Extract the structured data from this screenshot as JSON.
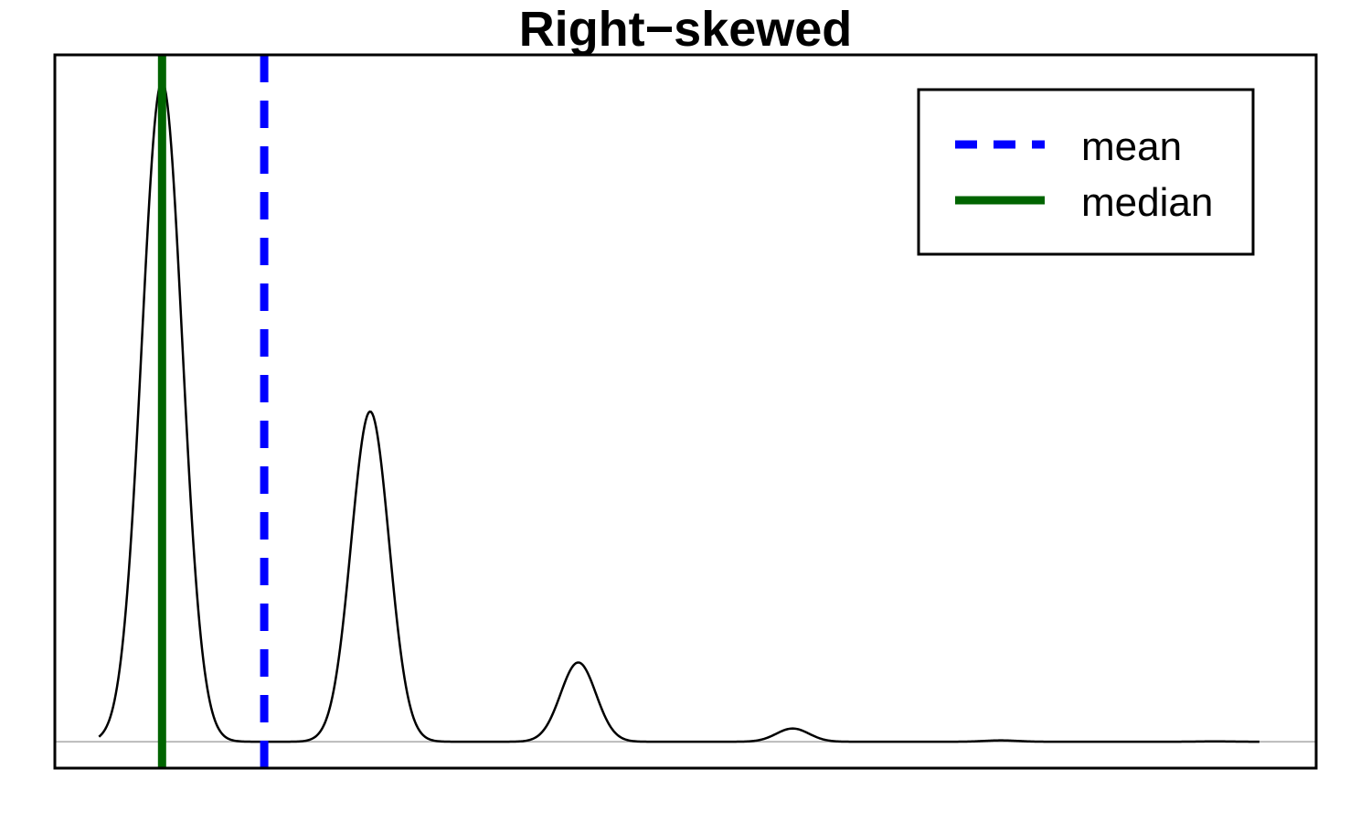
{
  "chart_data": {
    "type": "line",
    "title": "Right−skewed",
    "xlabel": "",
    "ylabel": "",
    "axes_visible": false,
    "grid": false,
    "legend_position": "top-right",
    "xlim": [
      0,
      10
    ],
    "ylim": [
      -0.04,
      1.04
    ],
    "baseline": {
      "y": 0,
      "color": "#bbbbbb"
    },
    "density_peaks": [
      {
        "center": 0.85,
        "height": 1.0,
        "sd": 0.16
      },
      {
        "center": 2.5,
        "height": 0.5,
        "sd": 0.15
      },
      {
        "center": 4.15,
        "height": 0.12,
        "sd": 0.14
      },
      {
        "center": 5.85,
        "height": 0.02,
        "sd": 0.13
      },
      {
        "center": 7.5,
        "height": 0.002,
        "sd": 0.13
      },
      {
        "center": 9.2,
        "height": 0.0005,
        "sd": 0.13
      }
    ],
    "density_range": [
      0.35,
      9.55
    ],
    "density_color": "#000000",
    "vlines": [
      {
        "name": "mean",
        "x": 1.66,
        "color": "#0000ff",
        "style": "dashed"
      },
      {
        "name": "median",
        "x": 0.85,
        "color": "#006400",
        "style": "solid"
      }
    ]
  }
}
